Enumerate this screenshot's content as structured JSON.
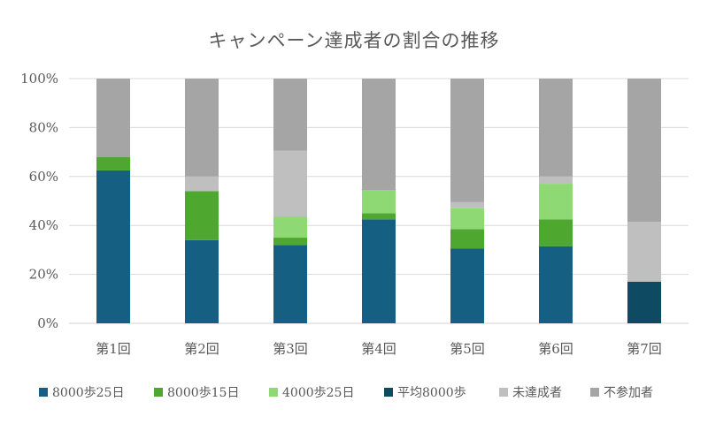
{
  "chart_data": {
    "type": "bar",
    "stacked": "percent",
    "title": "キャンペーン達成者の割合の推移",
    "categories": [
      "第1回",
      "第2回",
      "第3回",
      "第4回",
      "第5回",
      "第6回",
      "第7回"
    ],
    "y_ticks": [
      "0%",
      "20%",
      "40%",
      "60%",
      "80%",
      "100%"
    ],
    "ylim": [
      0,
      100
    ],
    "grid": true,
    "legend_position": "bottom",
    "series": [
      {
        "name": "8000歩25日",
        "color": "#156082",
        "values": [
          62.5,
          34,
          32,
          42.5,
          30.5,
          31.5,
          0
        ]
      },
      {
        "name": "8000歩15日",
        "color": "#4ea72e",
        "values": [
          5.5,
          20,
          3,
          2.5,
          8,
          11,
          0
        ]
      },
      {
        "name": "4000歩25日",
        "color": "#8ed973",
        "values": [
          0,
          0,
          8.5,
          9.5,
          8.5,
          14.5,
          0
        ]
      },
      {
        "name": "平均8000歩",
        "color": "#0e4a62",
        "values": [
          0,
          0,
          0,
          0,
          0,
          0,
          17
        ]
      },
      {
        "name": "未達成者",
        "color": "#bfbfbf",
        "values": [
          0,
          6,
          27,
          0,
          2.5,
          3,
          24.5
        ]
      },
      {
        "name": "不参加者",
        "color": "#a5a5a5",
        "values": [
          32,
          40,
          29.5,
          45.5,
          50.5,
          40,
          58.5
        ]
      }
    ]
  }
}
